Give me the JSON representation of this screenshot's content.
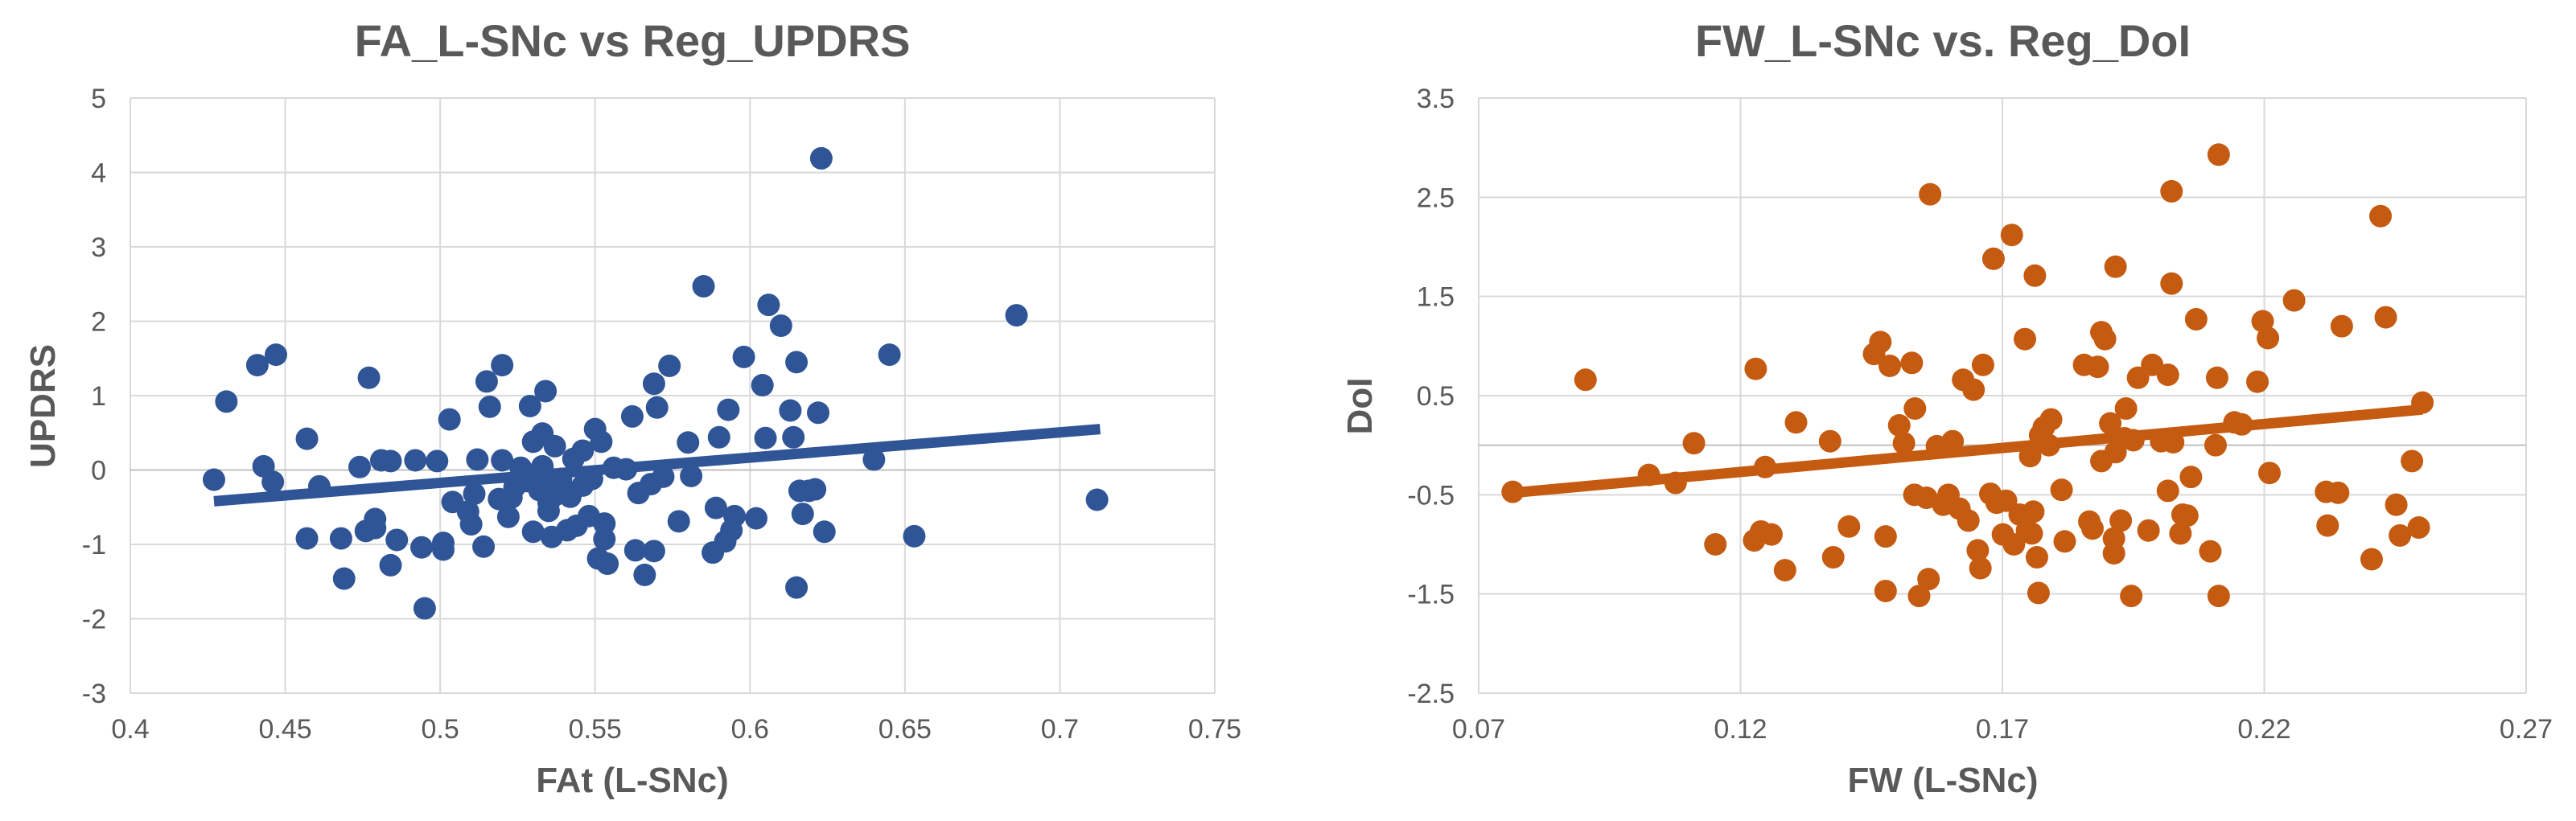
{
  "chart_data": [
    {
      "type": "scatter",
      "title": "FA_L-SNc vs Reg_UPDRS",
      "xlabel": "FAt (L-SNc)",
      "ylabel": "UPDRS",
      "xlim": [
        0.4,
        0.75
      ],
      "ylim": [
        -3,
        5
      ],
      "xticks": [
        "0.4",
        "0.45",
        "0.5",
        "0.55",
        "0.6",
        "0.65",
        "0.7",
        "0.75"
      ],
      "yticks": [
        "-3",
        "-2",
        "-1",
        "0",
        "1",
        "2",
        "3",
        "4",
        "5"
      ],
      "grid": true,
      "color": "#2F5597",
      "trendline": {
        "x": [
          0.427,
          0.713
        ],
        "y": [
          -0.42,
          0.55
        ]
      },
      "points": [
        [
          0.427,
          -0.13
        ],
        [
          0.431,
          0.92
        ],
        [
          0.441,
          1.41
        ],
        [
          0.443,
          0.05
        ],
        [
          0.446,
          -0.16
        ],
        [
          0.447,
          1.55
        ],
        [
          0.457,
          0.42
        ],
        [
          0.457,
          -0.92
        ],
        [
          0.461,
          -0.22
        ],
        [
          0.468,
          -0.92
        ],
        [
          0.469,
          -1.46
        ],
        [
          0.474,
          0.04
        ],
        [
          0.476,
          -0.82
        ],
        [
          0.477,
          1.24
        ],
        [
          0.479,
          -0.66
        ],
        [
          0.479,
          -0.78
        ],
        [
          0.481,
          0.13
        ],
        [
          0.484,
          0.12
        ],
        [
          0.484,
          -1.28
        ],
        [
          0.486,
          -0.94
        ],
        [
          0.492,
          0.13
        ],
        [
          0.494,
          -1.04
        ],
        [
          0.495,
          -1.86
        ],
        [
          0.499,
          0.12
        ],
        [
          0.501,
          -0.98
        ],
        [
          0.501,
          -1.07
        ],
        [
          0.503,
          0.68
        ],
        [
          0.504,
          -0.43
        ],
        [
          0.509,
          -0.56
        ],
        [
          0.51,
          -0.73
        ],
        [
          0.511,
          -0.32
        ],
        [
          0.512,
          0.14
        ],
        [
          0.514,
          -1.03
        ],
        [
          0.515,
          1.19
        ],
        [
          0.516,
          0.85
        ],
        [
          0.519,
          -0.39
        ],
        [
          0.52,
          0.13
        ],
        [
          0.52,
          1.41
        ],
        [
          0.522,
          -0.63
        ],
        [
          0.523,
          -0.37
        ],
        [
          0.524,
          -0.23
        ],
        [
          0.526,
          0.03
        ],
        [
          0.528,
          -0.15
        ],
        [
          0.529,
          0.86
        ],
        [
          0.53,
          0.38
        ],
        [
          0.53,
          -0.83
        ],
        [
          0.532,
          -0.27
        ],
        [
          0.533,
          0.05
        ],
        [
          0.533,
          0.49
        ],
        [
          0.534,
          1.06
        ],
        [
          0.534,
          -0.08
        ],
        [
          0.535,
          -0.44
        ],
        [
          0.535,
          -0.55
        ],
        [
          0.536,
          -0.9
        ],
        [
          0.537,
          0.32
        ],
        [
          0.537,
          -0.34
        ],
        [
          0.539,
          -0.12
        ],
        [
          0.54,
          -0.26
        ],
        [
          0.541,
          -0.81
        ],
        [
          0.542,
          -0.36
        ],
        [
          0.543,
          0.15
        ],
        [
          0.544,
          -0.75
        ],
        [
          0.546,
          0.26
        ],
        [
          0.546,
          -0.21
        ],
        [
          0.548,
          -0.62
        ],
        [
          0.549,
          -0.12
        ],
        [
          0.55,
          0.55
        ],
        [
          0.551,
          -1.19
        ],
        [
          0.552,
          0.38
        ],
        [
          0.553,
          -0.93
        ],
        [
          0.553,
          -0.72
        ],
        [
          0.554,
          -1.26
        ],
        [
          0.556,
          0.03
        ],
        [
          0.56,
          0.01
        ],
        [
          0.562,
          0.72
        ],
        [
          0.563,
          -1.08
        ],
        [
          0.564,
          -0.31
        ],
        [
          0.566,
          -1.41
        ],
        [
          0.568,
          -0.19
        ],
        [
          0.569,
          -1.09
        ],
        [
          0.569,
          1.16
        ],
        [
          0.57,
          0.84
        ],
        [
          0.572,
          -0.09
        ],
        [
          0.574,
          1.4
        ],
        [
          0.577,
          -0.69
        ],
        [
          0.58,
          0.37
        ],
        [
          0.581,
          -0.08
        ],
        [
          0.585,
          2.47
        ],
        [
          0.588,
          -1.11
        ],
        [
          0.589,
          -0.51
        ],
        [
          0.59,
          0.44
        ],
        [
          0.592,
          -0.96
        ],
        [
          0.593,
          0.81
        ],
        [
          0.594,
          -0.81
        ],
        [
          0.595,
          -0.62
        ],
        [
          0.598,
          1.52
        ],
        [
          0.602,
          -0.65
        ],
        [
          0.604,
          1.14
        ],
        [
          0.605,
          0.43
        ],
        [
          0.606,
          2.22
        ],
        [
          0.61,
          1.94
        ],
        [
          0.613,
          0.8
        ],
        [
          0.614,
          0.44
        ],
        [
          0.615,
          -1.58
        ],
        [
          0.615,
          1.45
        ],
        [
          0.616,
          -0.28
        ],
        [
          0.617,
          -0.59
        ],
        [
          0.619,
          -0.28
        ],
        [
          0.621,
          -0.26
        ],
        [
          0.622,
          0.77
        ],
        [
          0.623,
          4.19
        ],
        [
          0.624,
          -0.83
        ],
        [
          0.64,
          0.14
        ],
        [
          0.645,
          1.55
        ],
        [
          0.653,
          -0.89
        ],
        [
          0.686,
          2.08
        ],
        [
          0.712,
          -0.4
        ]
      ]
    },
    {
      "type": "scatter",
      "title": "FW_L-SNc vs. Reg_DoI",
      "xlabel": "FW (L-SNc)",
      "ylabel": "DoI",
      "xlim": [
        0.07,
        0.27
      ],
      "ylim": [
        -2.5,
        3.5
      ],
      "xticks": [
        "0.07",
        "0.12",
        "0.17",
        "0.22",
        "0.27"
      ],
      "yticks": [
        "-2.5",
        "-1.5",
        "-0.5",
        "0.5",
        "1.5",
        "2.5",
        "3.5"
      ],
      "grid": true,
      "color": "#C55A11",
      "trendline": {
        "x": [
          0.0765,
          0.2502
        ],
        "y": [
          -0.48,
          0.36
        ]
      },
      "points": [
        [
          0.0765,
          -0.47
        ],
        [
          0.0904,
          0.66
        ],
        [
          0.1025,
          -0.3
        ],
        [
          0.1076,
          -0.38
        ],
        [
          0.1111,
          0.02
        ],
        [
          0.1152,
          -1.0
        ],
        [
          0.1226,
          -0.96
        ],
        [
          0.1229,
          0.77
        ],
        [
          0.1239,
          -0.87
        ],
        [
          0.1247,
          -0.22
        ],
        [
          0.1259,
          -0.9
        ],
        [
          0.1285,
          -1.26
        ],
        [
          0.1306,
          0.23
        ],
        [
          0.1371,
          0.04
        ],
        [
          0.1377,
          -1.13
        ],
        [
          0.1407,
          -0.82
        ],
        [
          0.1455,
          0.92
        ],
        [
          0.1467,
          1.04
        ],
        [
          0.1477,
          -1.47
        ],
        [
          0.1477,
          -0.92
        ],
        [
          0.1485,
          0.8
        ],
        [
          0.1503,
          0.2
        ],
        [
          0.1512,
          0.02
        ],
        [
          0.1527,
          0.83
        ],
        [
          0.1532,
          -0.5
        ],
        [
          0.1533,
          0.37
        ],
        [
          0.1541,
          -1.52
        ],
        [
          0.1555,
          -0.53
        ],
        [
          0.1559,
          -1.35
        ],
        [
          0.1562,
          2.53
        ],
        [
          0.1575,
          -0.01
        ],
        [
          0.1587,
          -0.6
        ],
        [
          0.1597,
          -0.5
        ],
        [
          0.1605,
          0.04
        ],
        [
          0.1618,
          -0.64
        ],
        [
          0.1625,
          0.66
        ],
        [
          0.1635,
          -0.76
        ],
        [
          0.1645,
          0.56
        ],
        [
          0.1653,
          -1.06
        ],
        [
          0.1658,
          -1.24
        ],
        [
          0.1663,
          0.81
        ],
        [
          0.1677,
          -0.49
        ],
        [
          0.1683,
          1.88
        ],
        [
          0.1689,
          -0.58
        ],
        [
          0.1701,
          -0.9
        ],
        [
          0.1707,
          -0.56
        ],
        [
          0.1718,
          2.12
        ],
        [
          0.1722,
          -1.0
        ],
        [
          0.1733,
          -0.7
        ],
        [
          0.1743,
          1.07
        ],
        [
          0.1747,
          -0.86
        ],
        [
          0.1753,
          -0.11
        ],
        [
          0.1756,
          -0.89
        ],
        [
          0.1759,
          -0.67
        ],
        [
          0.1762,
          1.71
        ],
        [
          0.1766,
          -1.13
        ],
        [
          0.1769,
          -1.49
        ],
        [
          0.1772,
          0.1
        ],
        [
          0.1779,
          0.18
        ],
        [
          0.1789,
          0.0
        ],
        [
          0.1793,
          0.26
        ],
        [
          0.1813,
          -0.45
        ],
        [
          0.1819,
          -0.97
        ],
        [
          0.1856,
          0.81
        ],
        [
          0.1866,
          -0.77
        ],
        [
          0.1872,
          -0.84
        ],
        [
          0.1882,
          0.79
        ],
        [
          0.1889,
          -0.16
        ],
        [
          0.1889,
          1.14
        ],
        [
          0.1896,
          1.07
        ],
        [
          0.1906,
          0.22
        ],
        [
          0.1913,
          -0.94
        ],
        [
          0.1913,
          -1.09
        ],
        [
          0.1916,
          1.8
        ],
        [
          0.1916,
          -0.07
        ],
        [
          0.1926,
          -0.76
        ],
        [
          0.1933,
          0.07
        ],
        [
          0.1936,
          0.37
        ],
        [
          0.1946,
          -1.52
        ],
        [
          0.195,
          0.05
        ],
        [
          0.1959,
          0.68
        ],
        [
          0.1979,
          -0.86
        ],
        [
          0.1986,
          0.81
        ],
        [
          0.2003,
          0.04
        ],
        [
          0.2016,
          0.71
        ],
        [
          0.2016,
          -0.46
        ],
        [
          0.2023,
          1.63
        ],
        [
          0.2023,
          2.56
        ],
        [
          0.2026,
          0.03
        ],
        [
          0.204,
          -0.89
        ],
        [
          0.2044,
          -0.7
        ],
        [
          0.2053,
          -0.71
        ],
        [
          0.206,
          -0.32
        ],
        [
          0.207,
          1.27
        ],
        [
          0.2097,
          -1.07
        ],
        [
          0.2107,
          0.0
        ],
        [
          0.211,
          0.68
        ],
        [
          0.2113,
          2.93
        ],
        [
          0.2113,
          -1.52
        ],
        [
          0.2143,
          0.23
        ],
        [
          0.2157,
          0.21
        ],
        [
          0.2187,
          0.64
        ],
        [
          0.2197,
          1.25
        ],
        [
          0.2207,
          1.08
        ],
        [
          0.221,
          -0.28
        ],
        [
          0.2257,
          1.46
        ],
        [
          0.2318,
          -0.47
        ],
        [
          0.2321,
          -0.81
        ],
        [
          0.2341,
          -0.48
        ],
        [
          0.2348,
          1.2
        ],
        [
          0.2405,
          -1.15
        ],
        [
          0.2422,
          2.31
        ],
        [
          0.2432,
          1.29
        ],
        [
          0.2452,
          -0.6
        ],
        [
          0.2459,
          -0.91
        ],
        [
          0.2482,
          -0.16
        ],
        [
          0.2502,
          0.43
        ],
        [
          0.2495,
          -0.83
        ]
      ]
    }
  ]
}
